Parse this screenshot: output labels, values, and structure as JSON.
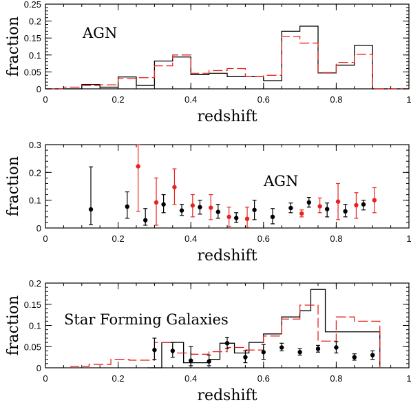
{
  "colors": {
    "black": "#000000",
    "red": "#e8231f"
  },
  "chart_data": [
    {
      "type": "histogram",
      "annotation": "AGN",
      "xlabel": "redshift",
      "ylabel": "fraction",
      "xlim": [
        0,
        1
      ],
      "ylim": [
        0,
        0.25
      ],
      "x_ticks": [
        "0",
        "0.2",
        "0.4",
        "0.6",
        "0.8",
        "1"
      ],
      "y_ticks": [
        "0",
        "0.05",
        "0.1",
        "0.15",
        "0.2",
        "0.25"
      ],
      "series": [
        {
          "color": "black",
          "style": "solid",
          "bins": [
            {
              "x0": 0.0,
              "x1": 0.1,
              "v": 0.0
            },
            {
              "x0": 0.1,
              "x1": 0.15,
              "v": 0.013
            },
            {
              "x0": 0.15,
              "x1": 0.2,
              "v": 0.005
            },
            {
              "x0": 0.2,
              "x1": 0.25,
              "v": 0.035
            },
            {
              "x0": 0.25,
              "x1": 0.3,
              "v": 0.01
            },
            {
              "x0": 0.3,
              "x1": 0.35,
              "v": 0.082
            },
            {
              "x0": 0.35,
              "x1": 0.4,
              "v": 0.094
            },
            {
              "x0": 0.4,
              "x1": 0.45,
              "v": 0.042
            },
            {
              "x0": 0.45,
              "x1": 0.5,
              "v": 0.046
            },
            {
              "x0": 0.5,
              "x1": 0.55,
              "v": 0.036
            },
            {
              "x0": 0.55,
              "x1": 0.6,
              "v": 0.036
            },
            {
              "x0": 0.6,
              "x1": 0.65,
              "v": 0.024
            },
            {
              "x0": 0.65,
              "x1": 0.7,
              "v": 0.17
            },
            {
              "x0": 0.7,
              "x1": 0.75,
              "v": 0.185
            },
            {
              "x0": 0.75,
              "x1": 0.8,
              "v": 0.047
            },
            {
              "x0": 0.8,
              "x1": 0.85,
              "v": 0.07
            },
            {
              "x0": 0.85,
              "x1": 0.9,
              "v": 0.128
            },
            {
              "x0": 0.9,
              "x1": 1.0,
              "v": 0.0
            }
          ]
        },
        {
          "color": "red",
          "style": "dashed",
          "bins": [
            {
              "x0": 0.0,
              "x1": 0.05,
              "v": 0.0
            },
            {
              "x0": 0.05,
              "x1": 0.1,
              "v": 0.005
            },
            {
              "x0": 0.1,
              "x1": 0.15,
              "v": 0.01
            },
            {
              "x0": 0.15,
              "x1": 0.2,
              "v": 0.012
            },
            {
              "x0": 0.2,
              "x1": 0.25,
              "v": 0.03
            },
            {
              "x0": 0.25,
              "x1": 0.3,
              "v": 0.033
            },
            {
              "x0": 0.3,
              "x1": 0.35,
              "v": 0.068
            },
            {
              "x0": 0.35,
              "x1": 0.4,
              "v": 0.1
            },
            {
              "x0": 0.4,
              "x1": 0.45,
              "v": 0.046
            },
            {
              "x0": 0.45,
              "x1": 0.5,
              "v": 0.054
            },
            {
              "x0": 0.5,
              "x1": 0.55,
              "v": 0.06
            },
            {
              "x0": 0.55,
              "x1": 0.6,
              "v": 0.036
            },
            {
              "x0": 0.6,
              "x1": 0.65,
              "v": 0.04
            },
            {
              "x0": 0.65,
              "x1": 0.7,
              "v": 0.155
            },
            {
              "x0": 0.7,
              "x1": 0.75,
              "v": 0.135
            },
            {
              "x0": 0.75,
              "x1": 0.8,
              "v": 0.048
            },
            {
              "x0": 0.8,
              "x1": 0.85,
              "v": 0.078
            },
            {
              "x0": 0.85,
              "x1": 0.9,
              "v": 0.102
            },
            {
              "x0": 0.9,
              "x1": 1.0,
              "v": 0.0
            }
          ]
        }
      ]
    },
    {
      "type": "scatter",
      "annotation": "AGN",
      "xlabel": "redshift",
      "ylabel": "fraction",
      "xlim": [
        0,
        1
      ],
      "ylim": [
        0,
        0.3
      ],
      "x_ticks": [
        "0",
        "0.2",
        "0.4",
        "0.6",
        "0.8",
        "1"
      ],
      "y_ticks": [
        "0",
        "0.1",
        "0.2",
        "0.3"
      ],
      "series": [
        {
          "color": "black",
          "points": [
            {
              "x": 0.125,
              "y": 0.067,
              "lo": 0.012,
              "hi": 0.22
            },
            {
              "x": 0.225,
              "y": 0.077,
              "lo": 0.035,
              "hi": 0.13
            },
            {
              "x": 0.275,
              "y": 0.028,
              "lo": 0.01,
              "hi": 0.07
            },
            {
              "x": 0.325,
              "y": 0.085,
              "lo": 0.055,
              "hi": 0.12
            },
            {
              "x": 0.375,
              "y": 0.063,
              "lo": 0.045,
              "hi": 0.085
            },
            {
              "x": 0.425,
              "y": 0.075,
              "lo": 0.05,
              "hi": 0.1
            },
            {
              "x": 0.475,
              "y": 0.058,
              "lo": 0.035,
              "hi": 0.085
            },
            {
              "x": 0.525,
              "y": 0.036,
              "lo": 0.02,
              "hi": 0.055
            },
            {
              "x": 0.575,
              "y": 0.065,
              "lo": 0.03,
              "hi": 0.1
            },
            {
              "x": 0.625,
              "y": 0.04,
              "lo": 0.015,
              "hi": 0.07
            },
            {
              "x": 0.675,
              "y": 0.072,
              "lo": 0.055,
              "hi": 0.09
            },
            {
              "x": 0.725,
              "y": 0.092,
              "lo": 0.075,
              "hi": 0.11
            },
            {
              "x": 0.775,
              "y": 0.068,
              "lo": 0.04,
              "hi": 0.09
            },
            {
              "x": 0.825,
              "y": 0.06,
              "lo": 0.04,
              "hi": 0.085
            },
            {
              "x": 0.875,
              "y": 0.085,
              "lo": 0.065,
              "hi": 0.1
            }
          ]
        },
        {
          "color": "red",
          "points": [
            {
              "x": 0.255,
              "y": 0.222,
              "lo": 0.06,
              "hi": 0.3
            },
            {
              "x": 0.305,
              "y": 0.092,
              "lo": 0.01,
              "hi": 0.18
            },
            {
              "x": 0.355,
              "y": 0.147,
              "lo": 0.085,
              "hi": 0.213
            },
            {
              "x": 0.405,
              "y": 0.081,
              "lo": 0.04,
              "hi": 0.12
            },
            {
              "x": 0.455,
              "y": 0.073,
              "lo": 0.03,
              "hi": 0.12
            },
            {
              "x": 0.505,
              "y": 0.04,
              "lo": 0.005,
              "hi": 0.075
            },
            {
              "x": 0.555,
              "y": 0.033,
              "lo": 0.002,
              "hi": 0.075
            },
            {
              "x": 0.705,
              "y": 0.052,
              "lo": 0.04,
              "hi": 0.065
            },
            {
              "x": 0.755,
              "y": 0.078,
              "lo": 0.055,
              "hi": 0.108
            },
            {
              "x": 0.805,
              "y": 0.095,
              "lo": 0.03,
              "hi": 0.16
            },
            {
              "x": 0.855,
              "y": 0.082,
              "lo": 0.035,
              "hi": 0.127
            },
            {
              "x": 0.905,
              "y": 0.1,
              "lo": 0.055,
              "hi": 0.145
            }
          ]
        }
      ]
    },
    {
      "type": "histogram",
      "annotation": "Star Forming Galaxies",
      "xlabel": "redshift",
      "ylabel": "fraction",
      "xlim": [
        0,
        1
      ],
      "ylim": [
        0,
        0.2
      ],
      "x_ticks": [
        "0",
        "0.2",
        "0.4",
        "0.6",
        "0.8",
        "1"
      ],
      "y_ticks": [
        "0",
        "0.05",
        "0.1",
        "0.15",
        "0.2"
      ],
      "series": [
        {
          "color": "black",
          "style": "solid",
          "bins": [
            {
              "x0": 0.28,
              "x1": 0.32,
              "v": 0.0
            },
            {
              "x0": 0.32,
              "x1": 0.38,
              "v": 0.06
            },
            {
              "x0": 0.38,
              "x1": 0.45,
              "v": 0.012
            },
            {
              "x0": 0.45,
              "x1": 0.48,
              "v": 0.02
            },
            {
              "x0": 0.48,
              "x1": 0.52,
              "v": 0.058
            },
            {
              "x0": 0.52,
              "x1": 0.56,
              "v": 0.035
            },
            {
              "x0": 0.56,
              "x1": 0.6,
              "v": 0.06
            },
            {
              "x0": 0.6,
              "x1": 0.65,
              "v": 0.08
            },
            {
              "x0": 0.65,
              "x1": 0.7,
              "v": 0.12
            },
            {
              "x0": 0.7,
              "x1": 0.73,
              "v": 0.135
            },
            {
              "x0": 0.73,
              "x1": 0.77,
              "v": 0.185
            },
            {
              "x0": 0.77,
              "x1": 0.92,
              "v": 0.085
            }
          ]
        },
        {
          "color": "red",
          "style": "dashed",
          "bins": [
            {
              "x0": 0.07,
              "x1": 0.12,
              "v": 0.003
            },
            {
              "x0": 0.12,
              "x1": 0.18,
              "v": 0.008
            },
            {
              "x0": 0.18,
              "x1": 0.23,
              "v": 0.02
            },
            {
              "x0": 0.23,
              "x1": 0.3,
              "v": 0.018
            },
            {
              "x0": 0.3,
              "x1": 0.35,
              "v": 0.06
            },
            {
              "x0": 0.35,
              "x1": 0.4,
              "v": 0.035
            },
            {
              "x0": 0.4,
              "x1": 0.45,
              "v": 0.032
            },
            {
              "x0": 0.45,
              "x1": 0.5,
              "v": 0.038
            },
            {
              "x0": 0.5,
              "x1": 0.55,
              "v": 0.048
            },
            {
              "x0": 0.55,
              "x1": 0.6,
              "v": 0.042
            },
            {
              "x0": 0.6,
              "x1": 0.65,
              "v": 0.075
            },
            {
              "x0": 0.65,
              "x1": 0.7,
              "v": 0.115
            },
            {
              "x0": 0.7,
              "x1": 0.75,
              "v": 0.148
            },
            {
              "x0": 0.75,
              "x1": 0.8,
              "v": 0.063
            },
            {
              "x0": 0.8,
              "x1": 0.85,
              "v": 0.12
            },
            {
              "x0": 0.85,
              "x1": 0.92,
              "v": 0.11
            }
          ]
        },
        {
          "color": "black",
          "style": "points",
          "points": [
            {
              "x": 0.3,
              "y": 0.042,
              "lo": 0.02,
              "hi": 0.07
            },
            {
              "x": 0.35,
              "y": 0.04,
              "lo": 0.025,
              "hi": 0.06
            },
            {
              "x": 0.4,
              "y": 0.017,
              "lo": 0.005,
              "hi": 0.05
            },
            {
              "x": 0.45,
              "y": 0.015,
              "lo": 0.005,
              "hi": 0.03
            },
            {
              "x": 0.5,
              "y": 0.058,
              "lo": 0.045,
              "hi": 0.072
            },
            {
              "x": 0.55,
              "y": 0.025,
              "lo": 0.012,
              "hi": 0.04
            },
            {
              "x": 0.6,
              "y": 0.037,
              "lo": 0.02,
              "hi": 0.055
            },
            {
              "x": 0.65,
              "y": 0.048,
              "lo": 0.04,
              "hi": 0.058
            },
            {
              "x": 0.7,
              "y": 0.037,
              "lo": 0.03,
              "hi": 0.045
            },
            {
              "x": 0.75,
              "y": 0.045,
              "lo": 0.037,
              "hi": 0.053
            },
            {
              "x": 0.8,
              "y": 0.048,
              "lo": 0.035,
              "hi": 0.062
            },
            {
              "x": 0.85,
              "y": 0.025,
              "lo": 0.018,
              "hi": 0.033
            },
            {
              "x": 0.9,
              "y": 0.03,
              "lo": 0.02,
              "hi": 0.04
            }
          ]
        }
      ]
    }
  ]
}
